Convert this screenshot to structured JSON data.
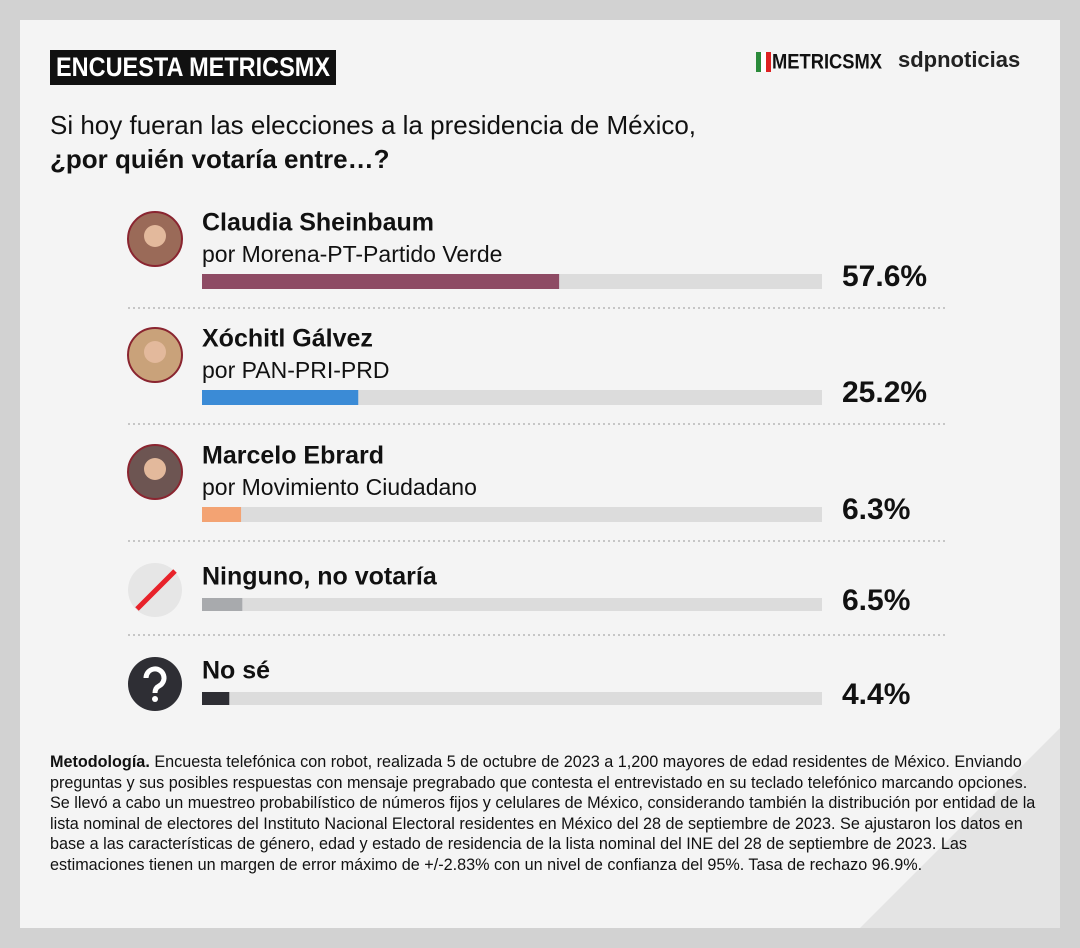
{
  "chart_data": {
    "type": "bar",
    "title": "ENCUESTA METRICSMX",
    "brands": [
      "METRICSMX",
      "sdpnoticias"
    ],
    "question": [
      "Si hoy fueran las elecciones a la presidencia de México,",
      "¿por quién votaría entre…?"
    ],
    "categories": [
      "Claudia Sheinbaum",
      "Xóchitl Gálvez",
      "Marcelo Ebrard",
      "Ninguno, no votaría",
      "No sé"
    ],
    "sublabels": [
      "por Morena-PT-Partido Verde",
      "por PAN-PRI-PRD",
      "por Movimiento Ciudadano",
      null,
      null
    ],
    "values": [
      57.6,
      25.2,
      6.3,
      6.5,
      4.4
    ],
    "value_labels": [
      "57.6%",
      "25.2%",
      "6.3%",
      "6.5%",
      "4.4%"
    ],
    "colors": [
      "#8e4b64",
      "#3b8bd6",
      "#f3a373",
      "#a8aaad",
      "#2e2e34"
    ],
    "xlim": [
      0,
      100
    ],
    "methodology": {
      "label": "Metodología.",
      "text": "Encuesta telefónica con robot, realizada 5 de octubre de 2023 a 1,200 mayores de edad residentes de México. Enviando preguntas y sus posibles respuestas con mensaje pregrabado que contesta el entrevistado en su teclado telefónico marcando opciones. Se llevó a cabo un muestreo probabilístico de números fijos y celulares de México, considerando también la distribución por entidad de la lista nominal de electores del Instituto Nacional Electoral residentes en México del 28 de septiembre de 2023. Se ajustaron los datos en base a las características de género, edad y estado de residencia de la lista nominal del INE del 28 de septiembre de 2023. Las estimaciones tienen un margen de error máximo de +/-2.83% con un nivel de confianza del 95%. Tasa de rechazo 96.9%."
    }
  }
}
